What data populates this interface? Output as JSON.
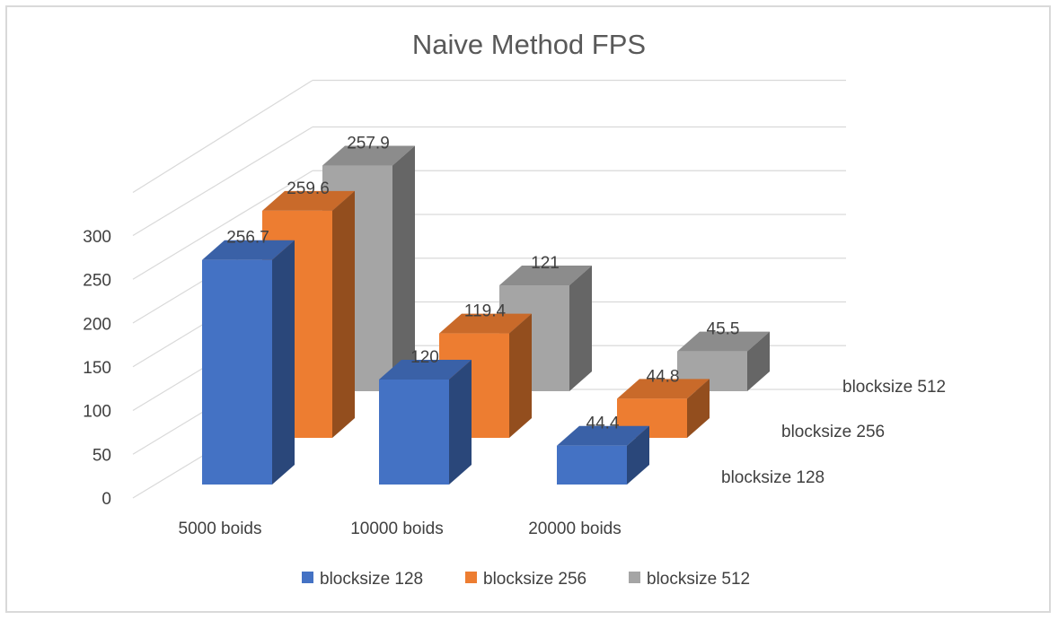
{
  "chart_data": {
    "type": "bar",
    "title": "Naive Method FPS",
    "categories": [
      "5000 boids",
      "10000 boids",
      "20000 boids"
    ],
    "series": [
      {
        "name": "blocksize 128",
        "values": [
          256.7,
          120,
          44.4
        ],
        "color": "#4472c4"
      },
      {
        "name": "blocksize 256",
        "values": [
          259.6,
          119.4,
          44.8
        ],
        "color": "#ed7d31"
      },
      {
        "name": "blocksize 512",
        "values": [
          257.9,
          121,
          45.5
        ],
        "color": "#a5a5a5"
      }
    ],
    "value_labels": [
      [
        "256.7",
        "120",
        "44.4"
      ],
      [
        "259.6",
        "119.4",
        "44.8"
      ],
      [
        "257.9",
        "121",
        "45.5"
      ]
    ],
    "yticks": [
      "0",
      "50",
      "100",
      "150",
      "200",
      "250",
      "300"
    ],
    "ylim": [
      0,
      300
    ],
    "depth_axis_labels": [
      "blocksize 128",
      "blocksize 256",
      "blocksize 512"
    ],
    "legend": [
      "blocksize 128",
      "blocksize 256",
      "blocksize 512"
    ],
    "legend_position": "bottom",
    "grid": true,
    "style": "3d-column"
  }
}
